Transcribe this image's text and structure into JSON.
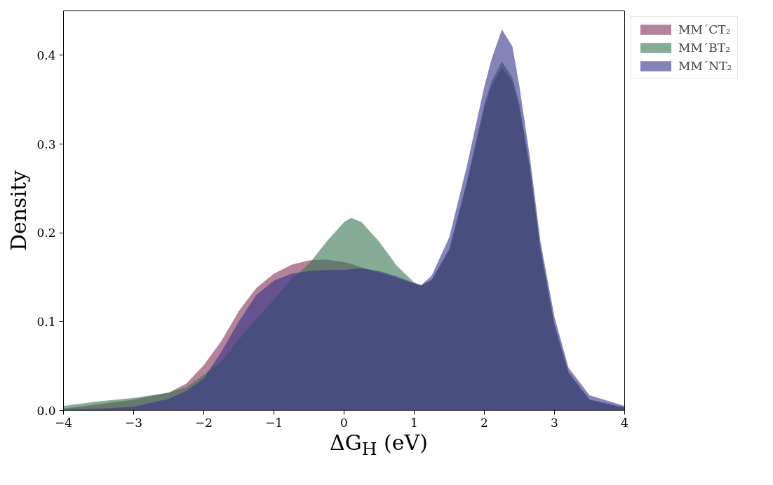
{
  "chart_data": {
    "type": "area",
    "xlabel": "ΔG$_{H}$ (eV)",
    "ylabel": "Density",
    "x": [
      -4,
      -3.5,
      -3,
      -2.5,
      -2.25,
      -2,
      -1.75,
      -1.5,
      -1.25,
      -1,
      -0.75,
      -0.5,
      -0.25,
      0,
      0.1,
      0.25,
      0.5,
      0.75,
      1,
      1.1,
      1.25,
      1.5,
      1.75,
      2,
      2.1,
      2.25,
      2.4,
      2.5,
      2.65,
      2.8,
      3,
      3.2,
      3.5,
      4
    ],
    "series": [
      {
        "name": "MM´CT₂",
        "color": "#822f55",
        "values": [
          0.002,
          0.007,
          0.012,
          0.02,
          0.03,
          0.051,
          0.078,
          0.112,
          0.138,
          0.154,
          0.164,
          0.169,
          0.17,
          0.167,
          0.165,
          0.161,
          0.155,
          0.149,
          0.143,
          0.141,
          0.147,
          0.18,
          0.255,
          0.34,
          0.365,
          0.386,
          0.37,
          0.34,
          0.27,
          0.18,
          0.095,
          0.042,
          0.012,
          0.003
        ]
      },
      {
        "name": "MM´BT₂",
        "color": "#357550",
        "values": [
          0.005,
          0.01,
          0.014,
          0.02,
          0.026,
          0.04,
          0.055,
          0.08,
          0.103,
          0.125,
          0.148,
          0.165,
          0.19,
          0.212,
          0.217,
          0.212,
          0.19,
          0.163,
          0.144,
          0.141,
          0.147,
          0.182,
          0.258,
          0.345,
          0.37,
          0.393,
          0.375,
          0.345,
          0.275,
          0.183,
          0.097,
          0.043,
          0.012,
          0.003
        ]
      },
      {
        "name": "MM´NT₂",
        "color": "#34328a",
        "values": [
          0.001,
          0.002,
          0.004,
          0.013,
          0.022,
          0.036,
          0.066,
          0.1,
          0.13,
          0.146,
          0.154,
          0.157,
          0.158,
          0.158,
          0.159,
          0.16,
          0.157,
          0.151,
          0.143,
          0.141,
          0.152,
          0.195,
          0.275,
          0.365,
          0.395,
          0.429,
          0.41,
          0.365,
          0.285,
          0.19,
          0.105,
          0.048,
          0.017,
          0.005
        ]
      }
    ],
    "xlim": [
      -4,
      4
    ],
    "ylim": [
      0,
      0.45
    ],
    "xticks": [
      {
        "value": -4,
        "label": "−4"
      },
      {
        "value": -3,
        "label": "−3"
      },
      {
        "value": -2,
        "label": "−2"
      },
      {
        "value": -1,
        "label": "−1"
      },
      0,
      1,
      2,
      3,
      4
    ],
    "yticks": [
      {
        "value": 0,
        "label": "0.0"
      },
      0.1,
      0.2,
      0.3,
      0.4
    ],
    "legend": "right",
    "grid": false
  }
}
